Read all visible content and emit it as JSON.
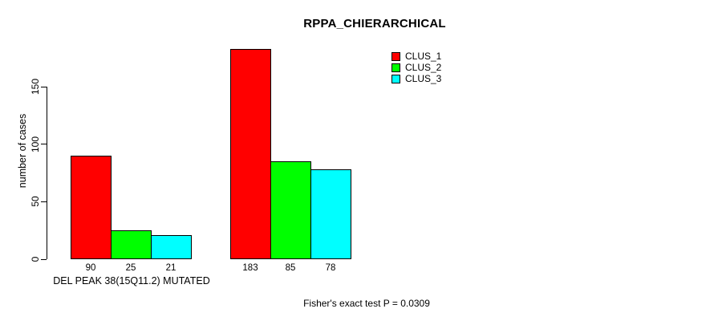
{
  "chart_data": {
    "type": "bar",
    "title": "RPPA_CHIERARCHICAL",
    "ylabel": "number of cases",
    "xlabel": "DEL PEAK 38(15Q11.2) MUTATED",
    "footnote": "Fisher's exact test P = 0.0309",
    "ylim": [
      0,
      150
    ],
    "yticks": [
      0,
      50,
      100,
      150
    ],
    "grid": false,
    "legend_position": "top-right",
    "show_values_under_bars": true,
    "categories": [
      "DEL PEAK 38(15Q11.2) MUTATED",
      ""
    ],
    "series": [
      {
        "name": "CLUS_1",
        "color": "#ff0000",
        "values": [
          90,
          183
        ]
      },
      {
        "name": "CLUS_2",
        "color": "#00ff00",
        "values": [
          25,
          85
        ]
      },
      {
        "name": "CLUS_3",
        "color": "#00ffff",
        "values": [
          21,
          78
        ]
      }
    ],
    "colors": {
      "background": "#ffffff",
      "axis": "#000000",
      "text": "#000000"
    }
  }
}
